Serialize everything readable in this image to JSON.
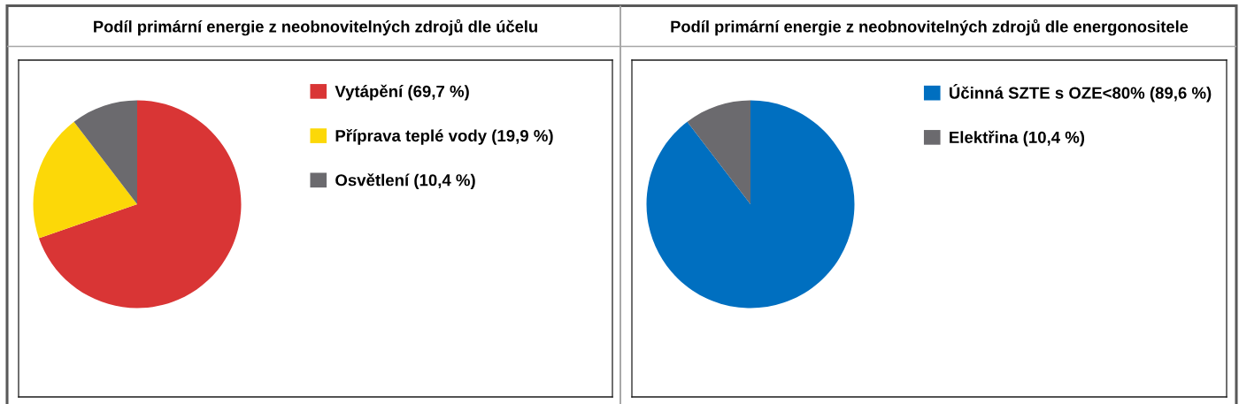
{
  "chart_data": [
    {
      "type": "pie",
      "title": "Podíl primární energie z neobnovitelných zdrojů dle účelu",
      "categories": [
        "Vytápění (69,7 %)",
        "Příprava teplé vody (19,9 %)",
        "Osvětlení (10,4 %)"
      ],
      "values": [
        69.7,
        19.9,
        10.4
      ],
      "colors": [
        "#d93535",
        "#fcd808",
        "#6b6a6e"
      ],
      "legend": "top right"
    },
    {
      "type": "pie",
      "title": "Podíl primární energie z neobnovitelných zdrojů dle energonositele",
      "categories": [
        "Účinná SZTE s OZE<80% (89,6 %)",
        "Elektřina (10,4 %)"
      ],
      "values": [
        89.6,
        10.4
      ],
      "colors": [
        "#006fc0",
        "#6b6a6e"
      ],
      "legend": "top right"
    }
  ]
}
